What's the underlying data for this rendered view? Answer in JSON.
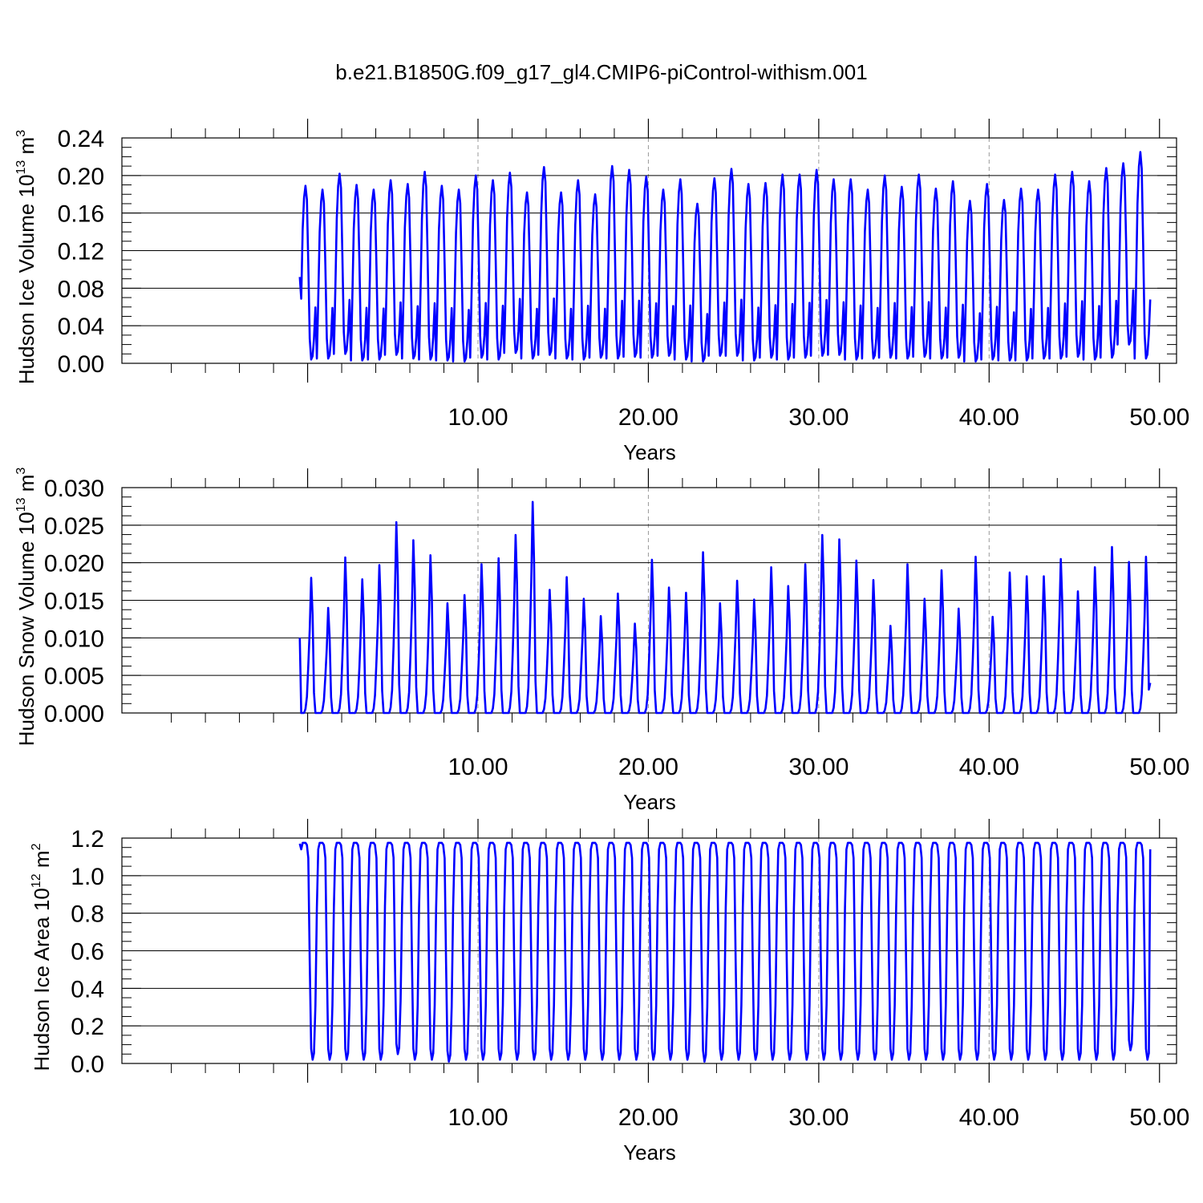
{
  "title": "b.e21.B1850G.f09_g17_gl4.CMIP6-piControl-withism.001",
  "colors": {
    "series": "#0000ff",
    "axis": "#000000",
    "grid": "#9a9a9a"
  },
  "chart_data": [
    {
      "type": "line",
      "name": "ice-volume",
      "xlabel": "Years",
      "ylabel": {
        "main": "Hudson Ice Volume 10",
        "exp": "13",
        "unit": "m",
        "unit_exp": "3"
      },
      "xlim": [
        0.0,
        50.0
      ],
      "ylim": [
        0.0,
        0.24
      ],
      "x_ticks": [
        10,
        20,
        30,
        40,
        50
      ],
      "x_tick_labels": [
        "10.00",
        "20.00",
        "30.00",
        "40.00",
        "50.00"
      ],
      "y_ticks": [
        0.0,
        0.04,
        0.08,
        0.12,
        0.16,
        0.2,
        0.24
      ],
      "y_tick_labels": [
        "0.00",
        "0.04",
        "0.08",
        "0.12",
        "0.16",
        "0.20",
        "0.24"
      ],
      "vertical_grid": [
        10,
        20,
        30,
        40
      ],
      "shape": "ice",
      "annual_max": [
        0.189,
        0.185,
        0.202,
        0.19,
        0.185,
        0.195,
        0.191,
        0.204,
        0.189,
        0.185,
        0.2,
        0.195,
        0.203,
        0.182,
        0.209,
        0.182,
        0.195,
        0.18,
        0.21,
        0.206,
        0.199,
        0.185,
        0.196,
        0.17,
        0.197,
        0.207,
        0.191,
        0.192,
        0.201,
        0.201,
        0.206,
        0.196,
        0.196,
        0.185,
        0.2,
        0.188,
        0.201,
        0.186,
        0.194,
        0.173,
        0.191,
        0.174,
        0.186,
        0.185,
        0.201,
        0.204,
        0.194,
        0.208,
        0.213,
        0.225
      ],
      "annual_min": [
        0.004,
        0.005,
        0.01,
        0.003,
        0.004,
        0.009,
        0.005,
        0.004,
        0.003,
        0.002,
        0.006,
        0.004,
        0.011,
        0.005,
        0.009,
        0.005,
        0.004,
        0.006,
        0.005,
        0.007,
        0.006,
        0.008,
        0.004,
        0.002,
        0.008,
        0.008,
        0.003,
        0.006,
        0.004,
        0.006,
        0.008,
        0.009,
        0.004,
        0.005,
        0.006,
        0.005,
        0.007,
        0.005,
        0.006,
        0.002,
        0.004,
        0.003,
        0.003,
        0.005,
        0.005,
        0.007,
        0.004,
        0.006,
        0.02,
        0.005
      ],
      "start_value": 0.092,
      "end_value": 0.068
    },
    {
      "type": "line",
      "name": "snow-volume",
      "xlabel": "Years",
      "ylabel": {
        "main": "Hudson Snow Volume 10",
        "exp": "13",
        "unit": "m",
        "unit_exp": "3"
      },
      "xlim": [
        0.0,
        50.0
      ],
      "ylim": [
        0.0,
        0.03
      ],
      "x_ticks": [
        10,
        20,
        30,
        40,
        50
      ],
      "x_tick_labels": [
        "10.00",
        "20.00",
        "30.00",
        "40.00",
        "50.00"
      ],
      "y_ticks": [
        0.0,
        0.005,
        0.01,
        0.015,
        0.02,
        0.025,
        0.03
      ],
      "y_tick_labels": [
        "0.000",
        "0.005",
        "0.010",
        "0.015",
        "0.020",
        "0.025",
        "0.030"
      ],
      "vertical_grid": [
        10,
        20,
        30,
        40
      ],
      "shape": "snow",
      "annual_max": [
        0.018,
        0.014,
        0.0207,
        0.0178,
        0.0197,
        0.0254,
        0.023,
        0.021,
        0.0146,
        0.0157,
        0.0198,
        0.0206,
        0.0237,
        0.0281,
        0.0164,
        0.0181,
        0.0152,
        0.0129,
        0.0159,
        0.0119,
        0.0204,
        0.0167,
        0.016,
        0.0214,
        0.0146,
        0.0176,
        0.0151,
        0.0194,
        0.0169,
        0.0198,
        0.0237,
        0.0231,
        0.0203,
        0.0177,
        0.0116,
        0.0198,
        0.0152,
        0.019,
        0.0139,
        0.0208,
        0.0128,
        0.0187,
        0.0182,
        0.0182,
        0.0205,
        0.0162,
        0.0194,
        0.0221,
        0.0201,
        0.0208
      ],
      "start_value": 0.01,
      "end_value": 0.004
    },
    {
      "type": "line",
      "name": "ice-area",
      "xlabel": "Years",
      "ylabel": {
        "main": "Hudson Ice Area 10",
        "exp": "12",
        "unit": "m",
        "unit_exp": "2"
      },
      "xlim": [
        0.0,
        50.0
      ],
      "ylim": [
        0.0,
        1.2
      ],
      "x_ticks": [
        10,
        20,
        30,
        40,
        50
      ],
      "x_tick_labels": [
        "10.00",
        "20.00",
        "30.00",
        "40.00",
        "50.00"
      ],
      "y_ticks": [
        0.0,
        0.2,
        0.4,
        0.6,
        0.8,
        1.0,
        1.2
      ],
      "y_tick_labels": [
        "0.0",
        "0.2",
        "0.4",
        "0.6",
        "0.8",
        "1.0",
        "1.2"
      ],
      "vertical_grid": [
        10,
        20,
        30,
        40
      ],
      "shape": "area",
      "annual_max": [
        1.175,
        1.175,
        1.175,
        1.175,
        1.175,
        1.175,
        1.175,
        1.175,
        1.175,
        1.175,
        1.175,
        1.175,
        1.175,
        1.175,
        1.175,
        1.175,
        1.175,
        1.175,
        1.175,
        1.175,
        1.175,
        1.175,
        1.175,
        1.175,
        1.175,
        1.175,
        1.175,
        1.175,
        1.175,
        1.175,
        1.175,
        1.175,
        1.175,
        1.175,
        1.175,
        1.175,
        1.175,
        1.175,
        1.175,
        1.175,
        1.175,
        1.175,
        1.175,
        1.175,
        1.175,
        1.175,
        1.175,
        1.175,
        1.175,
        1.175
      ],
      "annual_min": [
        0.02,
        0.02,
        0.02,
        0.02,
        0.02,
        0.05,
        0.02,
        0.02,
        0.01,
        0.02,
        0.02,
        0.02,
        0.02,
        0.02,
        0.02,
        0.02,
        0.02,
        0.02,
        0.02,
        0.02,
        0.02,
        0.02,
        0.02,
        0.01,
        0.02,
        0.02,
        0.02,
        0.02,
        0.02,
        0.02,
        0.02,
        0.02,
        0.02,
        0.02,
        0.02,
        0.02,
        0.02,
        0.02,
        0.02,
        0.02,
        0.02,
        0.02,
        0.02,
        0.02,
        0.02,
        0.02,
        0.02,
        0.02,
        0.07,
        0.02
      ],
      "start_value": 1.17,
      "end_value": 1.14
    }
  ]
}
